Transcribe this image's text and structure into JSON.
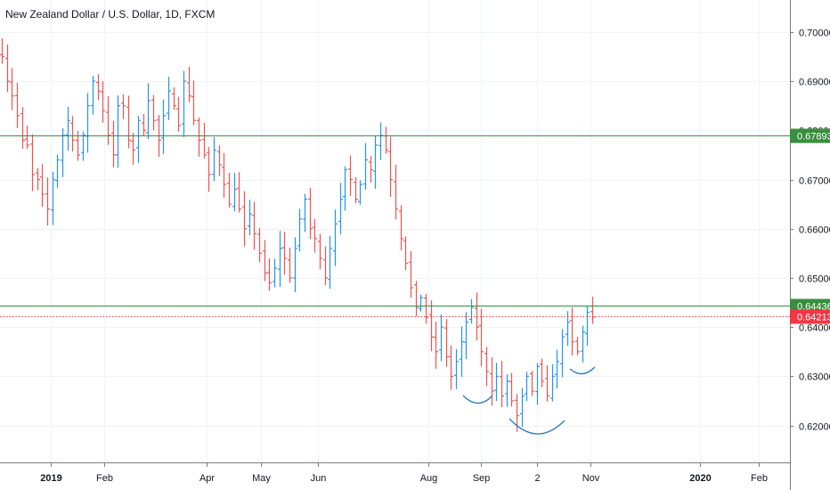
{
  "chart_data": {
    "type": "ohlc",
    "title": "New Zealand Dollar / U.S. Dollar, 1D, FXCM",
    "y_ticks": [
      "0.70000",
      "0.69000",
      "0.68000",
      "0.67000",
      "0.66000",
      "0.65000",
      "0.64000",
      "0.63000",
      "0.62000"
    ],
    "y_tick_values": [
      0.7,
      0.69,
      0.68,
      0.67,
      0.66,
      0.65,
      0.64,
      0.63,
      0.62
    ],
    "ylim": [
      0.6125,
      0.7065
    ],
    "x_ticks": [
      {
        "label": "2019",
        "bold": true
      },
      {
        "label": "Feb",
        "bold": false
      },
      {
        "label": "Apr",
        "bold": false
      },
      {
        "label": "May",
        "bold": false
      },
      {
        "label": "Jun",
        "bold": false
      },
      {
        "label": "Aug",
        "bold": false
      },
      {
        "label": "Sep",
        "bold": false
      },
      {
        "label": "2",
        "bold": false
      },
      {
        "label": "Nov",
        "bold": false
      },
      {
        "label": "2020",
        "bold": true
      },
      {
        "label": "Feb",
        "bold": false
      }
    ],
    "horizontal_levels": [
      {
        "value": 0.67893,
        "label": "0.67893",
        "color": "#388e3c",
        "style": "solid"
      },
      {
        "value": 0.64436,
        "label": "0.64436",
        "color": "#388e3c",
        "style": "solid"
      },
      {
        "value": 0.64213,
        "label": "0.64213",
        "color": "#f23645",
        "style": "dotted"
      }
    ],
    "closes": [
      0.695,
      0.69,
      0.687,
      0.683,
      0.678,
      0.677,
      0.671,
      0.67,
      0.667,
      0.664,
      0.67,
      0.674,
      0.679,
      0.682,
      0.678,
      0.675,
      0.679,
      0.685,
      0.69,
      0.688,
      0.684,
      0.679,
      0.675,
      0.685,
      0.685,
      0.678,
      0.676,
      0.682,
      0.68,
      0.686,
      0.682,
      0.678,
      0.683,
      0.688,
      0.685,
      0.681,
      0.69,
      0.687,
      0.682,
      0.678,
      0.675,
      0.671,
      0.676,
      0.673,
      0.669,
      0.665,
      0.668,
      0.664,
      0.66,
      0.663,
      0.659,
      0.655,
      0.651,
      0.649,
      0.652,
      0.656,
      0.654,
      0.65,
      0.656,
      0.662,
      0.666,
      0.66,
      0.658,
      0.654,
      0.65,
      0.656,
      0.661,
      0.666,
      0.672,
      0.67,
      0.666,
      0.669,
      0.674,
      0.672,
      0.677,
      0.679,
      0.676,
      0.67,
      0.664,
      0.658,
      0.653,
      0.648,
      0.644,
      0.646,
      0.642,
      0.638,
      0.635,
      0.64,
      0.634,
      0.63,
      0.633,
      0.637,
      0.641,
      0.644,
      0.64,
      0.635,
      0.631,
      0.627,
      0.63,
      0.626,
      0.629,
      0.625,
      0.622,
      0.626,
      0.63,
      0.627,
      0.632,
      0.629,
      0.626,
      0.63,
      0.633,
      0.638,
      0.641,
      0.637,
      0.635,
      0.639,
      0.643,
      0.642
    ]
  }
}
